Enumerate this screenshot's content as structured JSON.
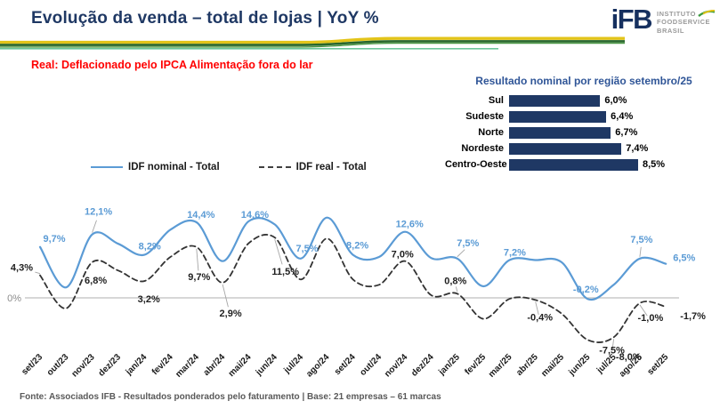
{
  "header": {
    "title": "Evolução da venda – total de lojas | YoY %",
    "logo": {
      "abbr": "iFB",
      "lines": [
        "INSTITUTO",
        "FOODSERVICE",
        "BRASIL"
      ]
    }
  },
  "subtitle": "Real: Deflacionado pelo IPCA Alimentação fora do lar",
  "footer": "Fonte: Associados IFB - Resultados ponderados pelo faturamento | Base: 21 empresas – 61 marcas",
  "colors": {
    "title_navy": "#1F3864",
    "nominal_blue": "#5B9BD5",
    "real_dark": "#333333",
    "bar_navy": "#1F3864",
    "region_title_blue": "#2F5597",
    "red_note": "#FF0000",
    "zero_line_gray": "#BFBFBF"
  },
  "chart_data": [
    {
      "type": "line",
      "title": "Evolução da venda – total de lojas | YoY %",
      "xlabel": "",
      "ylabel": "YoY %",
      "ylim": [
        -10,
        16
      ],
      "grid": false,
      "legend_position": "top-left",
      "axis": {
        "zero_label": "0%"
      },
      "categories": [
        "set/23",
        "out/23",
        "nov/23",
        "dez/23",
        "jan/24",
        "fev/24",
        "mar/24",
        "abr/24",
        "mai/24",
        "jun/24",
        "jul/24",
        "ago/24",
        "set/24",
        "out/24",
        "nov/24",
        "dez/24",
        "jan/25",
        "fev/25",
        "mar/25",
        "abr/25",
        "mai/25",
        "jun/25",
        "jul/25",
        "ago/25",
        "set/25"
      ],
      "series": [
        {
          "name": "IDF nominal - Total",
          "style": "solid",
          "color": "#5B9BD5",
          "width": 2.2,
          "label_color": "#5B9BD5",
          "values": [
            9.7,
            2.0,
            12.1,
            10.3,
            8.2,
            13.0,
            14.4,
            7.0,
            14.6,
            14.0,
            7.5,
            15.3,
            8.2,
            7.8,
            12.6,
            7.6,
            7.5,
            2.2,
            7.2,
            7.2,
            6.8,
            -0.2,
            2.5,
            7.5,
            6.5
          ],
          "point_labels": [
            {
              "i": 0,
              "text": "9,7%",
              "dx": 16,
              "dy": -6
            },
            {
              "i": 2,
              "text": "12,1%",
              "dx": 7,
              "dy": -22,
              "leader": true
            },
            {
              "i": 4,
              "text": "8,2%",
              "dx": 6,
              "dy": -6
            },
            {
              "i": 6,
              "text": "14,4%",
              "dx": 5,
              "dy": -5
            },
            {
              "i": 8,
              "text": "14,6%",
              "dx": 7,
              "dy": -4
            },
            {
              "i": 10,
              "text": "7,5%",
              "dx": 7,
              "dy": -8
            },
            {
              "i": 12,
              "text": "8,2%",
              "dx": 5,
              "dy": -7
            },
            {
              "i": 14,
              "text": "12,6%",
              "dx": 5,
              "dy": -5
            },
            {
              "i": 16,
              "text": "7,5%",
              "dx": 12,
              "dy": -14,
              "leader": true
            },
            {
              "i": 18,
              "text": "7,2%",
              "dx": 6,
              "dy": -5
            },
            {
              "i": 21,
              "text": "-0,2%",
              "dx": -2,
              "dy": -7
            },
            {
              "i": 23,
              "text": "7,5%",
              "dx": 2,
              "dy": -18,
              "leader": true
            },
            {
              "i": 24,
              "text": "6,5%",
              "dx": 8,
              "dy": -3,
              "anchor": "start"
            }
          ]
        },
        {
          "name": "IDF real - Total",
          "style": "dashed",
          "color": "#333333",
          "dash": "6 4",
          "width": 1.8,
          "label_color": "#1f1f1f",
          "values": [
            4.3,
            -2.0,
            6.8,
            5.2,
            3.2,
            7.8,
            9.7,
            2.9,
            10.4,
            11.5,
            3.5,
            11.3,
            3.5,
            2.5,
            7.0,
            0.5,
            0.8,
            -4.0,
            -0.2,
            -0.4,
            -3.0,
            -8.0,
            -7.5,
            -1.0,
            -1.7
          ],
          "point_labels": [
            {
              "i": 0,
              "text": "4,3%",
              "dx": -8,
              "dy": -5,
              "anchor": "end",
              "leader": true
            },
            {
              "i": 2,
              "text": "6,8%",
              "dx": 4,
              "dy": 24
            },
            {
              "i": 4,
              "text": "3,2%",
              "dx": 5,
              "dy": 24
            },
            {
              "i": 6,
              "text": "9,7%",
              "dx": 3,
              "dy": 37,
              "leader": true
            },
            {
              "i": 7,
              "text": "2,9%",
              "dx": 9,
              "dy": 38,
              "leader": true
            },
            {
              "i": 9,
              "text": "11,5%",
              "dx": 12,
              "dy": 42,
              "leader": true
            },
            {
              "i": 14,
              "text": "7,0%",
              "dx": -3,
              "dy": -4
            },
            {
              "i": 16,
              "text": "0,8%",
              "dx": -2,
              "dy": -11,
              "leader": true
            },
            {
              "i": 19,
              "text": "-0,4%",
              "dx": 5,
              "dy": 23,
              "leader": true
            },
            {
              "i": 21,
              "text": "-8,0%",
              "dx": 46,
              "dy": 23
            },
            {
              "i": 22,
              "text": "-7,5%",
              "dx": -2,
              "dy": 18,
              "leader": true
            },
            {
              "i": 23,
              "text": "-1,0%",
              "dx": 12,
              "dy": 20,
              "leader": true
            },
            {
              "i": 24,
              "text": "-1,7%",
              "dx": 16,
              "dy": 14,
              "anchor": "start"
            }
          ]
        }
      ]
    },
    {
      "type": "bar",
      "orientation": "horizontal",
      "title": "Resultado nominal por região setembro/25",
      "categories": [
        "Sul",
        "Sudeste",
        "Norte",
        "Nordeste",
        "Centro-Oeste"
      ],
      "values": [
        6.0,
        6.4,
        6.7,
        7.4,
        8.5
      ],
      "value_labels": [
        "6,0%",
        "6,4%",
        "6,7%",
        "7,4%",
        "8,5%"
      ],
      "bar_color": "#1F3864",
      "xlim": [
        0,
        8.5
      ]
    }
  ]
}
